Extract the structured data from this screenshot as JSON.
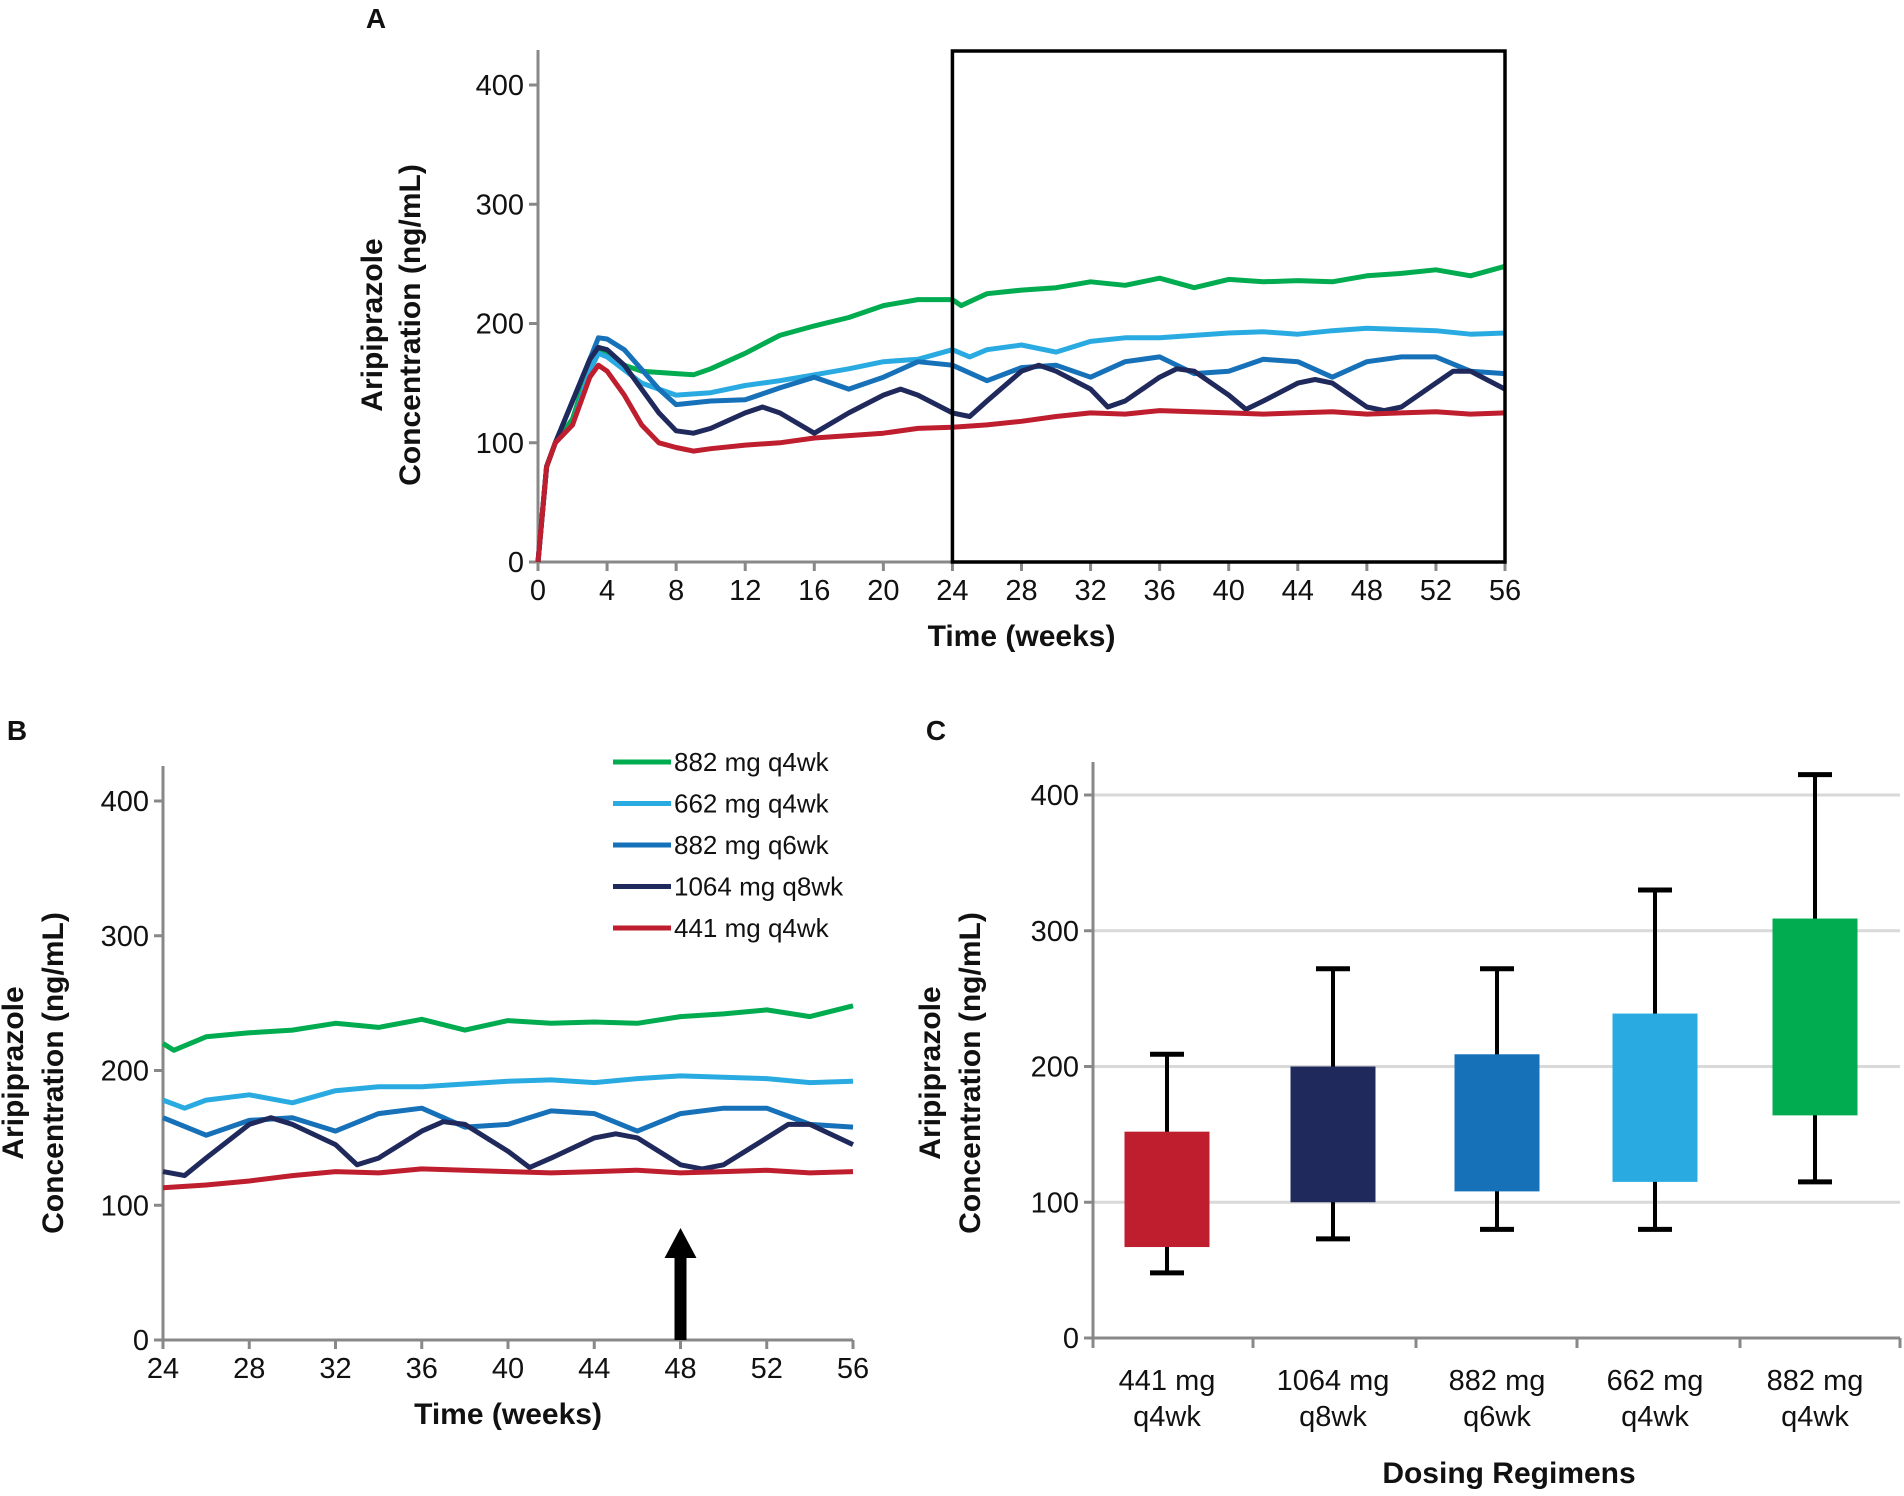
{
  "colors": {
    "882 mg q4wk": "#00ac4f",
    "662 mg q4wk": "#29abe2",
    "882 mg q6wk": "#1671b8",
    "1064 mg q8wk": "#20295b",
    "441 mg q4wk": "#be1e2d"
  },
  "chart_data": [
    {
      "panel": "A",
      "type": "line",
      "xlabel": "Time (weeks)",
      "ylabel": [
        "Aripiprazole",
        "Concentration (ng/mL)"
      ],
      "xlim": [
        0,
        56
      ],
      "ylim": [
        0,
        400
      ],
      "xticks": [
        0,
        4,
        8,
        12,
        16,
        20,
        24,
        28,
        32,
        36,
        40,
        44,
        48,
        52,
        56
      ],
      "yticks": [
        0,
        100,
        200,
        300,
        400
      ],
      "annotation": "Highlighted window from week 24 to week 56",
      "highlight": {
        "x": [
          24,
          56
        ]
      },
      "series": [
        {
          "name": "882 mg q4wk",
          "points": [
            [
              0,
              0
            ],
            [
              0.5,
              80
            ],
            [
              1,
              100
            ],
            [
              2,
              120
            ],
            [
              3,
              165
            ],
            [
              3.5,
              180
            ],
            [
              4,
              175
            ],
            [
              5,
              165
            ],
            [
              6,
              160
            ],
            [
              8,
              158
            ],
            [
              9,
              157
            ],
            [
              10,
              162
            ],
            [
              12,
              175
            ],
            [
              14,
              190
            ],
            [
              16,
              198
            ],
            [
              18,
              205
            ],
            [
              20,
              215
            ],
            [
              22,
              220
            ],
            [
              24,
              220
            ],
            [
              24.5,
              215
            ],
            [
              26,
              225
            ],
            [
              28,
              228
            ],
            [
              30,
              230
            ],
            [
              32,
              235
            ],
            [
              34,
              232
            ],
            [
              36,
              238
            ],
            [
              38,
              230
            ],
            [
              40,
              237
            ],
            [
              42,
              235
            ],
            [
              44,
              236
            ],
            [
              46,
              235
            ],
            [
              48,
              240
            ],
            [
              50,
              242
            ],
            [
              52,
              245
            ],
            [
              54,
              240
            ],
            [
              56,
              248
            ]
          ]
        },
        {
          "name": "662 mg q4wk",
          "points": [
            [
              0,
              0
            ],
            [
              0.5,
              80
            ],
            [
              1,
              100
            ],
            [
              2,
              115
            ],
            [
              3,
              160
            ],
            [
              3.5,
              175
            ],
            [
              4,
              172
            ],
            [
              6,
              150
            ],
            [
              8,
              140
            ],
            [
              10,
              142
            ],
            [
              12,
              148
            ],
            [
              14,
              152
            ],
            [
              16,
              157
            ],
            [
              18,
              162
            ],
            [
              20,
              168
            ],
            [
              22,
              170
            ],
            [
              24,
              178
            ],
            [
              25,
              172
            ],
            [
              26,
              178
            ],
            [
              28,
              182
            ],
            [
              30,
              176
            ],
            [
              32,
              185
            ],
            [
              34,
              188
            ],
            [
              36,
              188
            ],
            [
              38,
              190
            ],
            [
              40,
              192
            ],
            [
              42,
              193
            ],
            [
              44,
              191
            ],
            [
              46,
              194
            ],
            [
              48,
              196
            ],
            [
              50,
              195
            ],
            [
              52,
              194
            ],
            [
              54,
              191
            ],
            [
              56,
              192
            ]
          ]
        },
        {
          "name": "882 mg q6wk",
          "points": [
            [
              0,
              0
            ],
            [
              0.5,
              80
            ],
            [
              1,
              100
            ],
            [
              3,
              170
            ],
            [
              3.5,
              188
            ],
            [
              4,
              187
            ],
            [
              5,
              178
            ],
            [
              7,
              145
            ],
            [
              8,
              132
            ],
            [
              10,
              135
            ],
            [
              12,
              136
            ],
            [
              14,
              146
            ],
            [
              16,
              155
            ],
            [
              18,
              145
            ],
            [
              20,
              155
            ],
            [
              22,
              168
            ],
            [
              24,
              165
            ],
            [
              26,
              152
            ],
            [
              28,
              163
            ],
            [
              30,
              165
            ],
            [
              32,
              155
            ],
            [
              34,
              168
            ],
            [
              36,
              172
            ],
            [
              38,
              158
            ],
            [
              40,
              160
            ],
            [
              42,
              170
            ],
            [
              44,
              168
            ],
            [
              46,
              155
            ],
            [
              48,
              168
            ],
            [
              50,
              172
            ],
            [
              52,
              172
            ],
            [
              54,
              160
            ],
            [
              56,
              158
            ]
          ]
        },
        {
          "name": "1064 mg q8wk",
          "points": [
            [
              0,
              0
            ],
            [
              0.5,
              80
            ],
            [
              1,
              100
            ],
            [
              3,
              170
            ],
            [
              3.5,
              180
            ],
            [
              4,
              178
            ],
            [
              5,
              165
            ],
            [
              7,
              125
            ],
            [
              8,
              110
            ],
            [
              9,
              108
            ],
            [
              10,
              112
            ],
            [
              12,
              125
            ],
            [
              13,
              130
            ],
            [
              14,
              125
            ],
            [
              16,
              108
            ],
            [
              18,
              125
            ],
            [
              20,
              140
            ],
            [
              21,
              145
            ],
            [
              22,
              140
            ],
            [
              24,
              125
            ],
            [
              25,
              122
            ],
            [
              26,
              135
            ],
            [
              28,
              160
            ],
            [
              29,
              165
            ],
            [
              30,
              160
            ],
            [
              32,
              145
            ],
            [
              33,
              130
            ],
            [
              34,
              135
            ],
            [
              36,
              155
            ],
            [
              37,
              162
            ],
            [
              38,
              160
            ],
            [
              40,
              140
            ],
            [
              41,
              128
            ],
            [
              42,
              135
            ],
            [
              44,
              150
            ],
            [
              45,
              153
            ],
            [
              46,
              150
            ],
            [
              48,
              130
            ],
            [
              49,
              127
            ],
            [
              50,
              130
            ],
            [
              52,
              150
            ],
            [
              53,
              160
            ],
            [
              54,
              160
            ],
            [
              56,
              145
            ]
          ]
        },
        {
          "name": "441 mg q4wk",
          "points": [
            [
              0,
              0
            ],
            [
              0.5,
              80
            ],
            [
              1,
              100
            ],
            [
              2,
              115
            ],
            [
              3,
              155
            ],
            [
              3.5,
              165
            ],
            [
              4,
              160
            ],
            [
              5,
              140
            ],
            [
              6,
              115
            ],
            [
              7,
              100
            ],
            [
              8,
              96
            ],
            [
              9,
              93
            ],
            [
              10,
              95
            ],
            [
              12,
              98
            ],
            [
              14,
              100
            ],
            [
              16,
              104
            ],
            [
              18,
              106
            ],
            [
              20,
              108
            ],
            [
              22,
              112
            ],
            [
              24,
              113
            ],
            [
              26,
              115
            ],
            [
              28,
              118
            ],
            [
              30,
              122
            ],
            [
              32,
              125
            ],
            [
              34,
              124
            ],
            [
              36,
              127
            ],
            [
              38,
              126
            ],
            [
              40,
              125
            ],
            [
              42,
              124
            ],
            [
              44,
              125
            ],
            [
              46,
              126
            ],
            [
              48,
              124
            ],
            [
              50,
              125
            ],
            [
              52,
              126
            ],
            [
              54,
              124
            ],
            [
              56,
              125
            ]
          ]
        }
      ]
    },
    {
      "panel": "B",
      "type": "line",
      "xlabel": "Time (weeks)",
      "ylabel": [
        "Aripiprazole",
        "Concentration (ng/mL)"
      ],
      "xlim": [
        24,
        56
      ],
      "ylim": [
        0,
        400
      ],
      "xticks": [
        24,
        28,
        32,
        36,
        40,
        44,
        48,
        52,
        56
      ],
      "yticks": [
        0,
        100,
        200,
        300,
        400
      ],
      "legend": [
        "882 mg q4wk",
        "662 mg q4wk",
        "882 mg q6wk",
        "1064 mg q8wk",
        "441 mg q4wk"
      ],
      "legend_position": "top-right",
      "arrow_at_week": 48,
      "source": "zoom of panel A, weeks 24-56"
    },
    {
      "panel": "C",
      "type": "box",
      "xlabel": "Dosing Regimens",
      "ylabel": [
        "Aripiprazole",
        "Concentration (ng/mL)"
      ],
      "ylim": [
        0,
        400
      ],
      "yticks": [
        0,
        100,
        200,
        300,
        400
      ],
      "grid": true,
      "categories": [
        [
          "441 mg",
          "q4wk"
        ],
        [
          "1064 mg",
          "q8wk"
        ],
        [
          "882 mg",
          "q6wk"
        ],
        [
          "662 mg",
          "q4wk"
        ],
        [
          "882 mg",
          "q4wk"
        ]
      ],
      "series_names": [
        "441 mg q4wk",
        "1064 mg q8wk",
        "882 mg q6wk",
        "662 mg q4wk",
        "882 mg q4wk"
      ],
      "boxes": [
        {
          "whisker_low": 48,
          "q1": 67,
          "q3": 152,
          "whisker_high": 209
        },
        {
          "whisker_low": 73,
          "q1": 100,
          "q3": 200,
          "whisker_high": 272
        },
        {
          "whisker_low": 80,
          "q1": 108,
          "q3": 209,
          "whisker_high": 272
        },
        {
          "whisker_low": 80,
          "q1": 115,
          "q3": 239,
          "whisker_high": 330
        },
        {
          "whisker_low": 115,
          "q1": 164,
          "q3": 309,
          "whisker_high": 415
        }
      ]
    }
  ]
}
